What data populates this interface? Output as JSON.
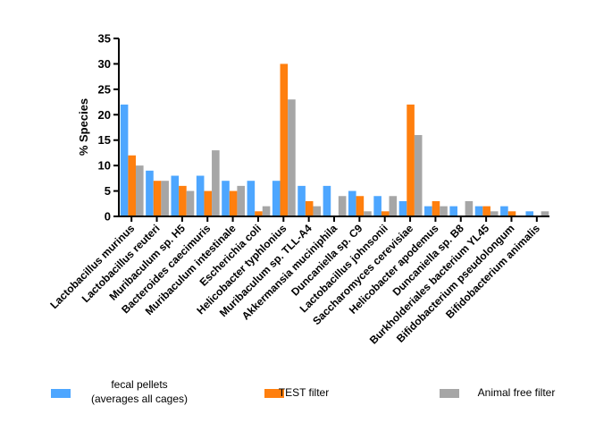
{
  "chart_data": {
    "type": "bar",
    "title": "",
    "xlabel": "",
    "ylabel": "% Species",
    "ylim": [
      0,
      35
    ],
    "yticks": [
      0,
      5,
      10,
      15,
      20,
      25,
      30,
      35
    ],
    "grid": false,
    "legend_position": "bottom",
    "categories": [
      "Lactobacillus murinus",
      "Lactobacillus reuteri",
      "Muribaculum sp. H5",
      "Bacteroides caecimuris",
      "Muribaculum intestinale",
      "Escherichia coli",
      "Helicobacter typhlonius",
      "Muribaculum sp. TLL-A4",
      "Akkermansia muciniphila",
      "Duncaniella sp. C9",
      "Lactobacillus johnsonii",
      "Saccharomyces cerevisiae",
      "Helicobacter apodemus",
      "Duncaniella sp. B8",
      "Burkholderiales bacterium YL45",
      "Bifidobacterium pseudolongum",
      "Bifidobacterium animalis"
    ],
    "series": [
      {
        "name": "fecal pellets (averages all cages)",
        "legend_lines": [
          "fecal pellets",
          "(averages all cages)"
        ],
        "color": "#4da6ff",
        "values": [
          22,
          9,
          8,
          8,
          7,
          7,
          7,
          6,
          6,
          5,
          4,
          3,
          2,
          2,
          2,
          2,
          1
        ]
      },
      {
        "name": "TEST  filter",
        "legend_lines": [
          "TEST  filter"
        ],
        "color": "#ff7f0e",
        "values": [
          12,
          7,
          6,
          5,
          5,
          1,
          30,
          3,
          0,
          4,
          1,
          22,
          3,
          0,
          2,
          1,
          0
        ]
      },
      {
        "name": "Animal free filter",
        "legend_lines": [
          "Animal free filter"
        ],
        "color": "#a6a6a6",
        "values": [
          10,
          7,
          5,
          13,
          6,
          2,
          23,
          2,
          4,
          1,
          4,
          16,
          2,
          3,
          1,
          0,
          1
        ]
      }
    ]
  }
}
